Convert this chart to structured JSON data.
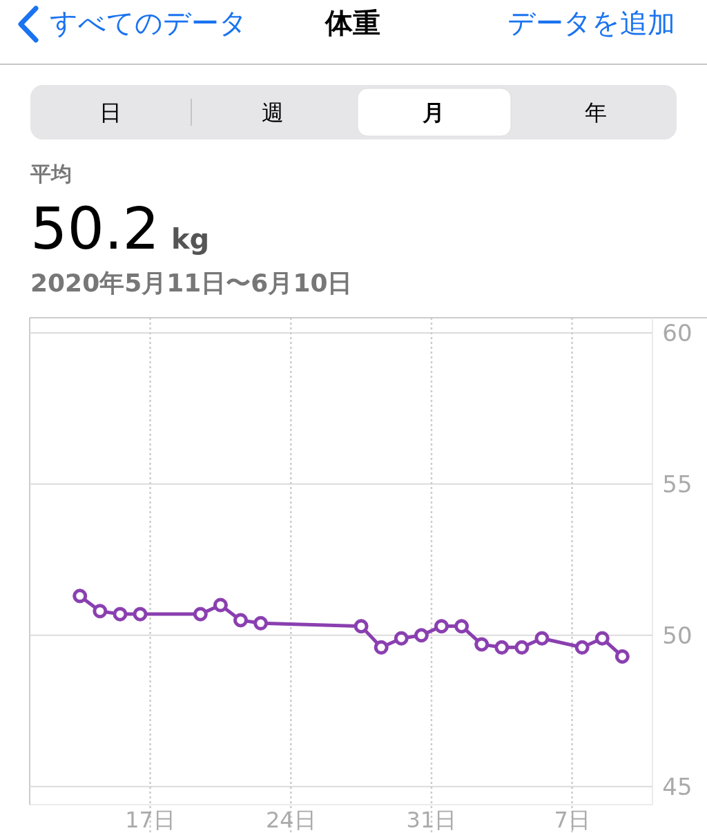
{
  "chart_data": {
    "type": "line",
    "title": "体重",
    "subtitle": "2020年5月11日〜6月10日",
    "annotations": [
      "すべてのデータ",
      "データを追加",
      "日",
      "週",
      "月",
      "年",
      "平均",
      "50.2",
      "kg"
    ],
    "x": [
      "2020-05-13T12:00",
      "2020-05-14T12:00",
      "2020-05-15T12:00",
      "2020-05-16T12:00",
      "2020-05-19T12:00",
      "2020-05-20T12:00",
      "2020-05-21T12:00",
      "2020-05-22T12:00",
      "2020-05-27T12:00",
      "2020-05-28T12:00",
      "2020-05-29T12:00",
      "2020-05-30T12:00",
      "2020-05-31T12:00",
      "2020-06-01T12:00",
      "2020-06-02T12:00",
      "2020-06-03T12:00",
      "2020-06-04T12:00",
      "2020-06-05T12:00",
      "2020-06-07T12:00",
      "2020-06-08T12:00",
      "2020-06-09T12:00"
    ],
    "values": [
      51.3,
      50.8,
      50.7,
      50.7,
      50.7,
      51.0,
      50.5,
      50.4,
      50.3,
      49.6,
      49.9,
      50.0,
      50.3,
      50.3,
      49.7,
      49.6,
      49.6,
      49.9,
      49.6,
      49.9,
      49.3
    ],
    "color": "#8a3fb0",
    "marker": "circle",
    "line_style": "solid",
    "grid": true,
    "xlim": [
      "2020-05-11",
      "2020-06-11"
    ],
    "xticks": [
      {
        "value": "2020-05-17",
        "label": "17日"
      },
      {
        "value": "2020-05-24",
        "label": "24日"
      },
      {
        "value": "2020-05-31",
        "label": "31日"
      },
      {
        "value": "2020-06-07",
        "label": "7日"
      }
    ],
    "ylim": [
      44.4,
      60.5
    ],
    "yticks": [
      45,
      50,
      55,
      60
    ]
  }
}
